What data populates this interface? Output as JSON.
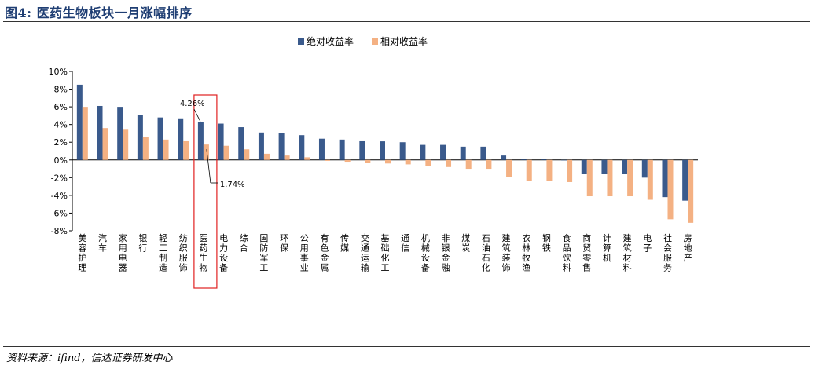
{
  "page": {
    "title": "图4: 医药生物板块一月涨幅排序",
    "source": "资料来源：ifind，信达证券研发中心"
  },
  "chart_data": {
    "type": "bar",
    "title": "",
    "xlabel": "",
    "ylabel": "",
    "ylim": [
      -8,
      10
    ],
    "yticks": [
      10,
      8,
      6,
      4,
      2,
      0,
      -2,
      -4,
      -6,
      -8
    ],
    "ytick_labels": [
      "10%",
      "8%",
      "6%",
      "4%",
      "2%",
      "0%",
      "-2%",
      "-4%",
      "-6%",
      "-8%"
    ],
    "unit": "%",
    "legend_position": "top-center",
    "grid": false,
    "categories": [
      "美容护理",
      "汽车",
      "家用电器",
      "银行",
      "轻工制造",
      "纺织服饰",
      "医药生物",
      "电力设备",
      "综合",
      "国防军工",
      "环保",
      "公用事业",
      "有色金属",
      "传媒",
      "交通运输",
      "基础化工",
      "通信",
      "机械设备",
      "非银金融",
      "煤炭",
      "石油石化",
      "建筑装饰",
      "农林牧渔",
      "钢铁",
      "食品饮料",
      "商贸零售",
      "计算机",
      "建筑材料",
      "电子",
      "社会服务",
      "房地产"
    ],
    "series": [
      {
        "name": "绝对收益率",
        "color": "#3a5a8c",
        "values": [
          8.5,
          6.1,
          6.0,
          5.1,
          4.8,
          4.7,
          4.26,
          4.1,
          3.7,
          3.1,
          3.0,
          2.8,
          2.4,
          2.3,
          2.2,
          2.1,
          2.0,
          1.7,
          1.7,
          1.5,
          1.5,
          0.5,
          0.1,
          0.1,
          0.0,
          -1.6,
          -1.6,
          -1.6,
          -2.0,
          -4.2,
          -4.6
        ]
      },
      {
        "name": "相对收益率",
        "color": "#f4b183",
        "values": [
          6.0,
          3.6,
          3.5,
          2.6,
          2.3,
          2.2,
          1.74,
          1.6,
          1.2,
          0.7,
          0.5,
          0.3,
          -0.1,
          -0.2,
          -0.3,
          -0.4,
          -0.5,
          -0.7,
          -0.8,
          -1.0,
          -1.0,
          -1.9,
          -2.4,
          -2.4,
          -2.5,
          -4.1,
          -4.1,
          -4.1,
          -4.5,
          -6.7,
          -7.1
        ]
      }
    ],
    "annotations": [
      {
        "text": "4.26%",
        "category": "医药生物",
        "series": "绝对收益率",
        "value": 4.26
      },
      {
        "text": "1.74%",
        "category": "医药生物",
        "series": "相对收益率",
        "value": 1.74
      }
    ],
    "highlight_category": "医药生物",
    "highlight_color": "#e02020"
  }
}
